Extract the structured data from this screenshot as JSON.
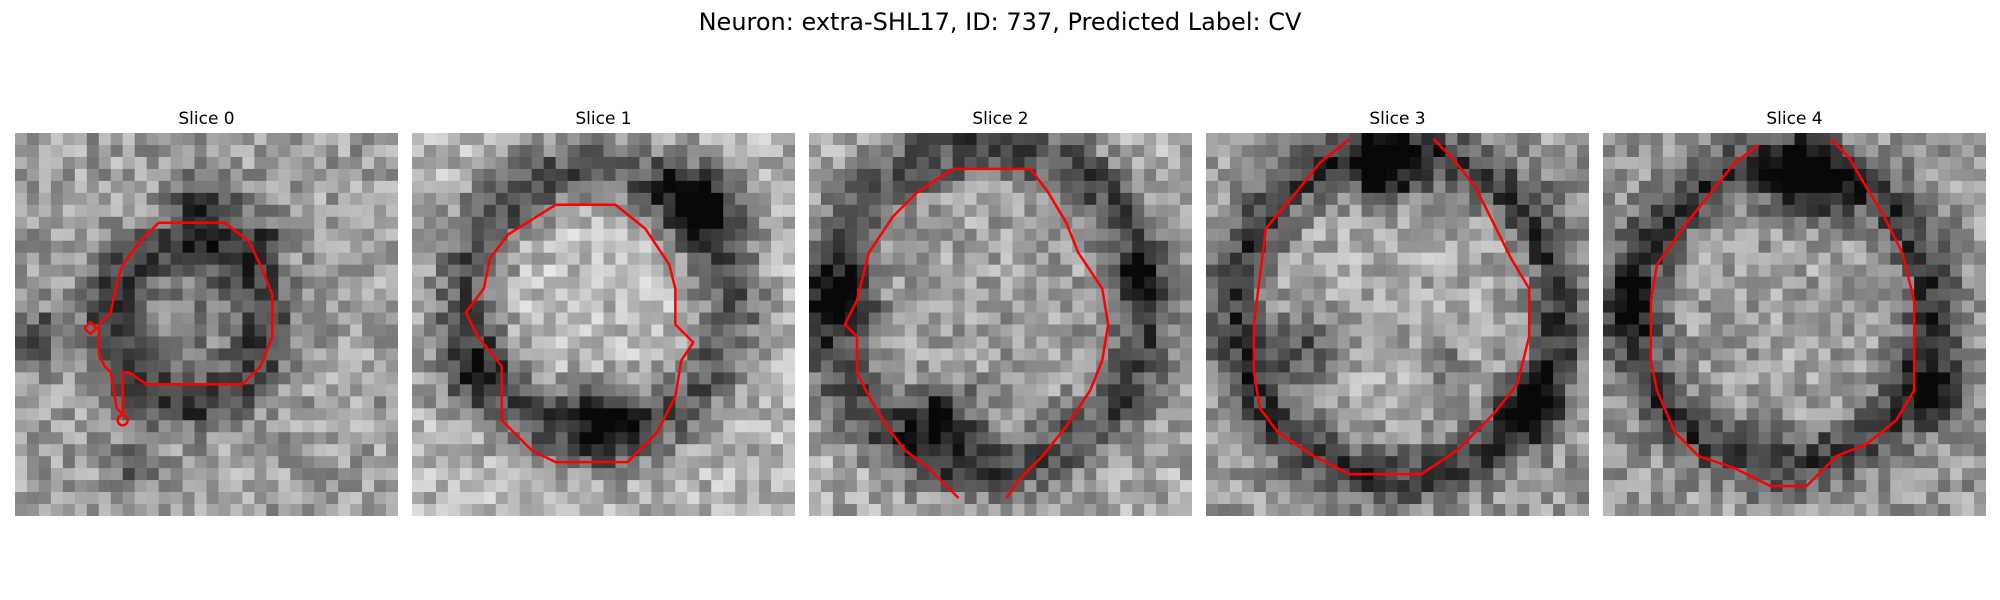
{
  "figure": {
    "suptitle": "Neuron: extra-SHL17, ID: 737, Predicted Label: CV",
    "contour_color": "#ff0000",
    "slices": [
      {
        "title": "Slice 0"
      },
      {
        "title": "Slice 1"
      },
      {
        "title": "Slice 2"
      },
      {
        "title": "Slice 3"
      },
      {
        "title": "Slice 4"
      }
    ]
  }
}
